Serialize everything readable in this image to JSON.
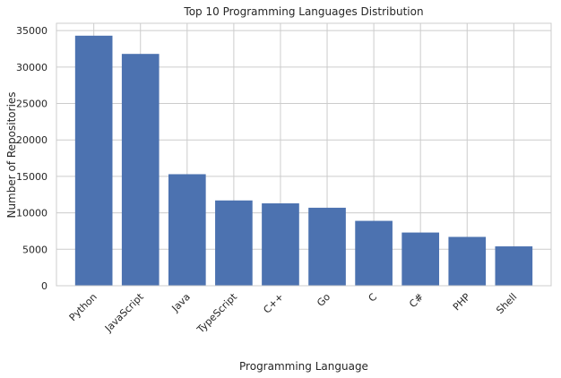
{
  "chart_data": {
    "type": "bar",
    "title": "Top 10 Programming Languages Distribution",
    "xlabel": "Programming Language",
    "ylabel": "Number of Repositories",
    "categories": [
      "Python",
      "JavaScript",
      "Java",
      "TypeScript",
      "C++",
      "Go",
      "C",
      "C#",
      "PHP",
      "Shell"
    ],
    "values": [
      34300,
      31800,
      15300,
      11700,
      11300,
      10700,
      8900,
      7300,
      6700,
      5400
    ],
    "ylim": [
      0,
      36000
    ],
    "yticks": [
      0,
      5000,
      10000,
      15000,
      20000,
      25000,
      30000,
      35000
    ],
    "grid": true,
    "bar_color": "#4c72b0",
    "grid_color": "#cccccc"
  }
}
